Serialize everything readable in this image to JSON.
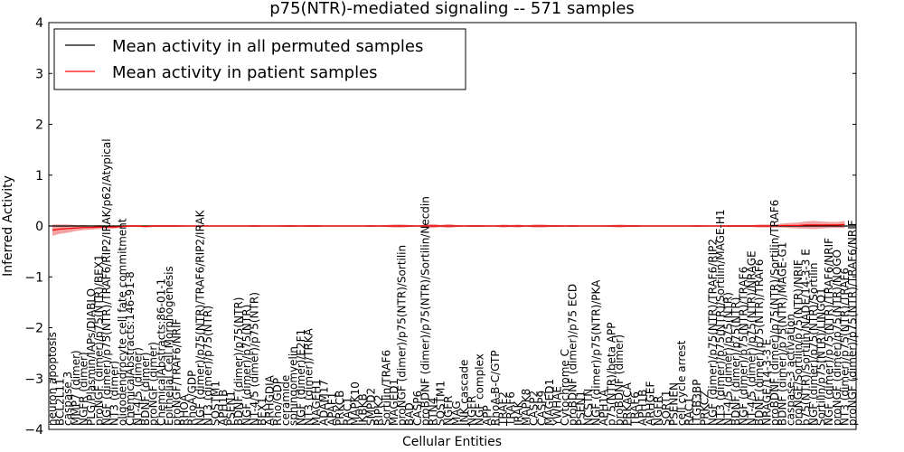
{
  "chart_data": {
    "type": "line",
    "title": "p75(NTR)-mediated signaling -- 571 samples",
    "xlabel": "Cellular Entities",
    "ylabel": "Inferred Activity",
    "ylim": [
      -4,
      4
    ],
    "yticks": [
      -4,
      -3,
      -2,
      -1,
      0,
      1,
      2,
      3,
      4
    ],
    "legend_position": "top-left",
    "series": [
      {
        "name": "Mean activity in all permuted samples",
        "color": "#000000",
        "mean": 0.0
      },
      {
        "name": "Mean activity in patient samples",
        "color": "#ff0000",
        "band_color": "#f08080",
        "mean": 0.0
      }
    ],
    "reference_line": 0,
    "categories": [
      "neuron apoptosis",
      "BCL2L11",
      "caspase 3",
      "MMP7 (dimer)",
      "NGFR (dimer)",
      "PLG/Plasmin/IAPs/DIABLO",
      "proNGF (dimer)/p75(NTR)/BEX1",
      "NGF (dimer)/p75(NTR)/TRAF6/RIP2/IRAK/p62/Atypical",
      "NT3 (dimer)",
      "oligodendrocyte cell fate commitment",
      "ChemicalAbstracts:146-91-8",
      "NT-4/5 (dimer)",
      "BDNF (dimer)",
      "proNGF (dimer)",
      "ChemicalAbstracts:86-01-1",
      "Epithelial Cell Morphogenesis",
      "proNGF/TRAF6/NRIF",
      "RHOA",
      "RhoA/GDP",
      "NGF (dimer)/p75(NTR)/TRAF6/RIP2/IRAK",
      "NT3 (dimer)/p75(NTR)",
      "SQSTM1",
      "APH1B",
      "PSEN1",
      "BDNF (dimer)/p75(NTR)",
      "NGF (dimer)/p75(NTR)",
      "NT-4/5 (dimer)/p75(NTR)",
      "BEX1",
      "ARHGDIA",
      "Rho/GDP",
      "ceramide",
      "sphingomyelin",
      "NGF (dimer)/E2F1",
      "NT3 (dimer)/TRKA",
      "MAGEH1",
      "ADAM17",
      "APAF1",
      "PRKCB",
      "RAC1",
      "MAPK10",
      "IKBKB",
      "SMPD2",
      "RIPK2",
      "Sortilin/TRAF6",
      "MAGED1",
      "proNGF (dimer)/p75(NTR)/Sortilin",
      "BAD",
      "CASP6",
      "proBDNF (dimer)/p75(NTR)/Sortilin/Necdin",
      "RTN4",
      "SQSTM1",
      "NGFR",
      "MAG",
      "JNK cascade",
      "NGFR",
      "NGF complex",
      "APP",
      "RhoA-B-C/GTP",
      "TRAF2",
      "TRAF6",
      "IRAK",
      "MAPK8",
      "CASP2",
      "CASP9",
      "MAGED1",
      "YWHAE",
      "Cytochrome C",
      "proBDNF (dimer)/p75 ECD",
      "PSEN1",
      "NCSTN",
      "NGF (dimer)/p75(NTR)/PKA",
      "APH1A",
      "p75(NTR)/beta APP",
      "proBDNF (dimer)",
      "PRKACA",
      "TRAF6",
      "APH1B",
      "ARHGEF",
      "NGFR",
      "SORT1",
      "PSENEN",
      "cell cycle arrest",
      "RAC1",
      "ITGB3BP",
      "PRKCZ",
      "NGF (dimer)/p75(NTR)/TRAF6/RIP2",
      "NT3 (dimer)/p75(NTR)/Sortilin/MAGE-H1",
      "NT-4/5 (dimer)/p75(NTR)",
      "BDNF (dimer)/p75(NTR)",
      "NGF (dimer)/p75(NTR)/TRAF6",
      "NT-4/5 (dimer)/p75(NTR)/NRAGE",
      "BDNF (dimer)/p75(NTR)/TRAF6",
      "NRAGE/14-3-3 E",
      "proBDNF (dimer)/p75(NTR)/Sortilin/TRAF6",
      "BDNF (dimer)/p75(NTR)/MAGE-G1",
      "caspase-3 activation",
      "proNGF/Sortilin/p75(NTR)/NRIF",
      "p75(NTR)/Sortilin/NADE/14-3-3 E",
      "NGF (dimer)/p75(NTR)/Sortilin",
      "Sortilin/p75(NTR)/LINGO1",
      "NGF (dimer)/p75(NTR)/TRAF6/NRIF",
      "proNGF (dimer)/p75(NTR)/NOGO",
      "NT3 (dimer)/p75(NTR)/TRAF6",
      "proNGF (dimer)/p75(NTR)/TRAF6/NRIF"
    ],
    "patient_mean": [
      -0.08,
      -0.06,
      -0.05,
      -0.04,
      -0.03,
      -0.03,
      -0.02,
      -0.02,
      -0.02,
      -0.01,
      0.0,
      0.0,
      -0.01,
      0.0,
      0.0,
      0.0,
      0.0,
      0.0,
      0.0,
      0.0,
      0.0,
      0.0,
      0.0,
      0.0,
      0.0,
      0.0,
      0.0,
      0.0,
      0.0,
      0.0,
      0.0,
      0.0,
      0.0,
      0.0,
      0.0,
      0.0,
      0.0,
      0.0,
      0.0,
      0.0,
      0.0,
      0.0,
      0.0,
      0.0,
      0.0,
      0.0,
      0.0,
      0.0,
      0.0,
      0.0,
      0.0,
      0.0,
      0.0,
      0.0,
      0.0,
      0.0,
      0.0,
      0.0,
      0.0,
      0.0,
      0.0,
      0.0,
      0.0,
      0.0,
      0.0,
      0.0,
      0.0,
      0.0,
      0.0,
      0.0,
      0.0,
      0.0,
      0.0,
      0.0,
      0.0,
      0.0,
      0.0,
      0.0,
      0.0,
      0.0,
      0.0,
      0.0,
      0.0,
      0.0,
      0.0,
      0.0,
      0.0,
      0.0,
      0.0,
      0.0,
      0.0,
      0.0,
      0.0,
      0.0,
      0.01,
      0.01,
      0.01,
      0.02,
      0.02,
      0.02,
      0.02,
      0.02,
      0.03
    ],
    "patient_spread": [
      0.11,
      0.09,
      0.08,
      0.06,
      0.05,
      0.04,
      0.04,
      0.03,
      0.03,
      0.02,
      0.02,
      0.02,
      0.02,
      0.02,
      0.02,
      0.02,
      0.02,
      0.01,
      0.01,
      0.01,
      0.01,
      0.01,
      0.01,
      0.01,
      0.01,
      0.01,
      0.02,
      0.01,
      0.01,
      0.01,
      0.02,
      0.02,
      0.01,
      0.02,
      0.02,
      0.01,
      0.01,
      0.01,
      0.01,
      0.01,
      0.01,
      0.02,
      0.01,
      0.02,
      0.03,
      0.03,
      0.02,
      0.01,
      0.03,
      0.04,
      0.02,
      0.04,
      0.02,
      0.01,
      0.02,
      0.02,
      0.01,
      0.01,
      0.03,
      0.02,
      0.03,
      0.01,
      0.03,
      0.03,
      0.02,
      0.02,
      0.01,
      0.02,
      0.01,
      0.01,
      0.01,
      0.01,
      0.02,
      0.03,
      0.02,
      0.02,
      0.01,
      0.01,
      0.01,
      0.01,
      0.01,
      0.01,
      0.01,
      0.02,
      0.01,
      0.01,
      0.01,
      0.02,
      0.02,
      0.02,
      0.02,
      0.03,
      0.03,
      0.03,
      0.04,
      0.05,
      0.06,
      0.07,
      0.08,
      0.07,
      0.06,
      0.06,
      0.07
    ]
  }
}
